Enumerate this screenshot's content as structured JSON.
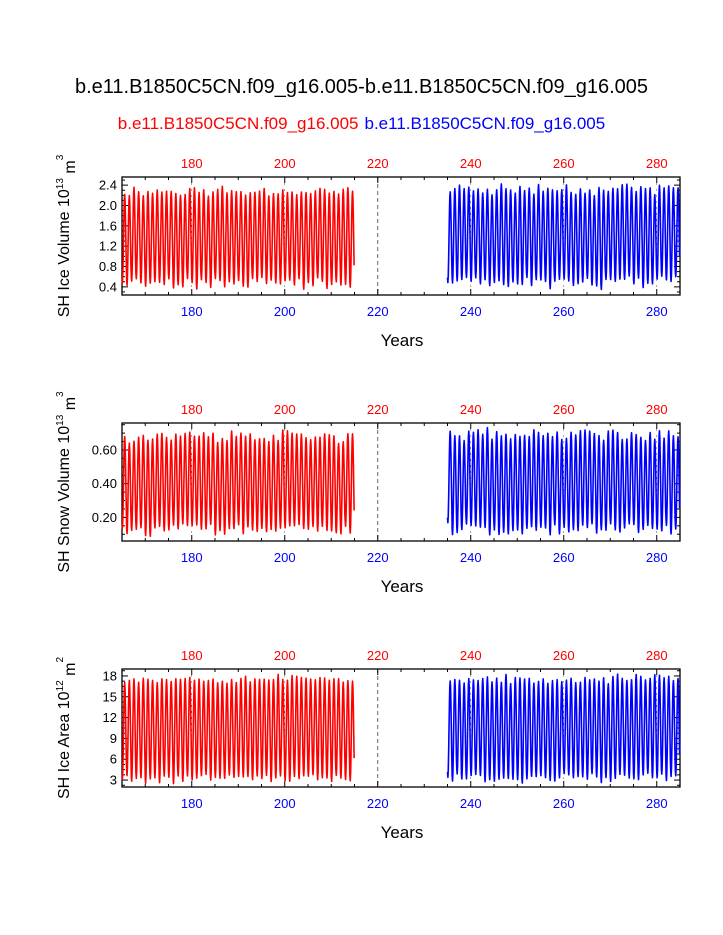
{
  "page": {
    "title": "b.e11.B1850C5CN.f09_g16.005-b.e11.B1850C5CN.f09_g16.005",
    "subtitle_left": "b.e11.B1850C5CN.f09_g16.005",
    "subtitle_right": "b.e11.B1850C5CN.f09_g16.005"
  },
  "colors": {
    "case1": "#ff0000",
    "case2": "#0000ff",
    "axis": "#000000",
    "guide": "#555555"
  },
  "chart_data": [
    {
      "type": "line",
      "ylabel": "SH Ice Volume 10",
      "ylabel_exp": "13",
      "ylabel_unit": " m",
      "ylabel_unit_exp": "3",
      "xlabel": "Years",
      "xlim": [
        165,
        285
      ],
      "ylim": [
        0.24,
        2.56
      ],
      "yticks": [
        0.4,
        0.8,
        1.2,
        1.6,
        2.0,
        2.4
      ],
      "ytick_labels": [
        "0.4",
        "0.8",
        "1.2",
        "1.6",
        "2.0",
        "2.4"
      ],
      "xticks": [
        180,
        200,
        220,
        240,
        260,
        280
      ],
      "top_tick_labels": [
        "180",
        "200",
        "220",
        "240",
        "260",
        "280"
      ],
      "bottom_tick_labels": [
        "180",
        "200",
        "220",
        "240",
        "260",
        "280"
      ],
      "divider_x": 220,
      "series": [
        {
          "name": "b.e11.B1850C5CN.f09_g16.005",
          "color": "#ff0000",
          "x_start": 165,
          "x_end": 215,
          "min": 0.48,
          "max": 2.28,
          "var": 0.08,
          "seed": 11
        },
        {
          "name": "b.e11.B1850C5CN.f09_g16.005",
          "color": "#0000ff",
          "x_start": 235,
          "x_end": 285,
          "min": 0.48,
          "max": 2.32,
          "var": 0.09,
          "seed": 23
        }
      ]
    },
    {
      "type": "line",
      "ylabel": "SH Snow Volume 10",
      "ylabel_exp": "13",
      "ylabel_unit": " m",
      "ylabel_unit_exp": "3",
      "xlabel": "Years",
      "xlim": [
        165,
        285
      ],
      "ylim": [
        0.06,
        0.76
      ],
      "yticks": [
        0.2,
        0.4,
        0.6
      ],
      "ytick_labels": [
        "0.20",
        "0.40",
        "0.60"
      ],
      "xticks": [
        180,
        200,
        220,
        240,
        260,
        280
      ],
      "top_tick_labels": [
        "180",
        "200",
        "220",
        "240",
        "260",
        "280"
      ],
      "bottom_tick_labels": [
        "180",
        "200",
        "220",
        "240",
        "260",
        "280"
      ],
      "divider_x": 220,
      "series": [
        {
          "name": "b.e11.B1850C5CN.f09_g16.005",
          "color": "#ff0000",
          "x_start": 165,
          "x_end": 215,
          "min": 0.12,
          "max": 0.68,
          "var": 0.03,
          "seed": 37
        },
        {
          "name": "b.e11.B1850C5CN.f09_g16.005",
          "color": "#0000ff",
          "x_start": 235,
          "x_end": 285,
          "min": 0.13,
          "max": 0.69,
          "var": 0.03,
          "seed": 41
        }
      ]
    },
    {
      "type": "line",
      "ylabel": "SH Ice Area 10",
      "ylabel_exp": "12",
      "ylabel_unit": " m",
      "ylabel_unit_exp": "2",
      "xlabel": "Years",
      "xlim": [
        165,
        285
      ],
      "ylim": [
        2.0,
        19.0
      ],
      "yticks": [
        3,
        6,
        9,
        12,
        15,
        18
      ],
      "ytick_labels": [
        "3",
        "6",
        "9",
        "12",
        "15",
        "18"
      ],
      "xticks": [
        180,
        200,
        220,
        240,
        260,
        280
      ],
      "top_tick_labels": [
        "180",
        "200",
        "220",
        "240",
        "260",
        "280"
      ],
      "bottom_tick_labels": [
        "180",
        "200",
        "220",
        "240",
        "260",
        "280"
      ],
      "divider_x": 220,
      "series": [
        {
          "name": "b.e11.B1850C5CN.f09_g16.005",
          "color": "#ff0000",
          "x_start": 165,
          "x_end": 215,
          "min": 3.2,
          "max": 17.6,
          "var": 0.4,
          "seed": 53
        },
        {
          "name": "b.e11.B1850C5CN.f09_g16.005",
          "color": "#0000ff",
          "x_start": 235,
          "x_end": 285,
          "min": 3.3,
          "max": 17.6,
          "var": 0.4,
          "seed": 67
        }
      ]
    }
  ]
}
